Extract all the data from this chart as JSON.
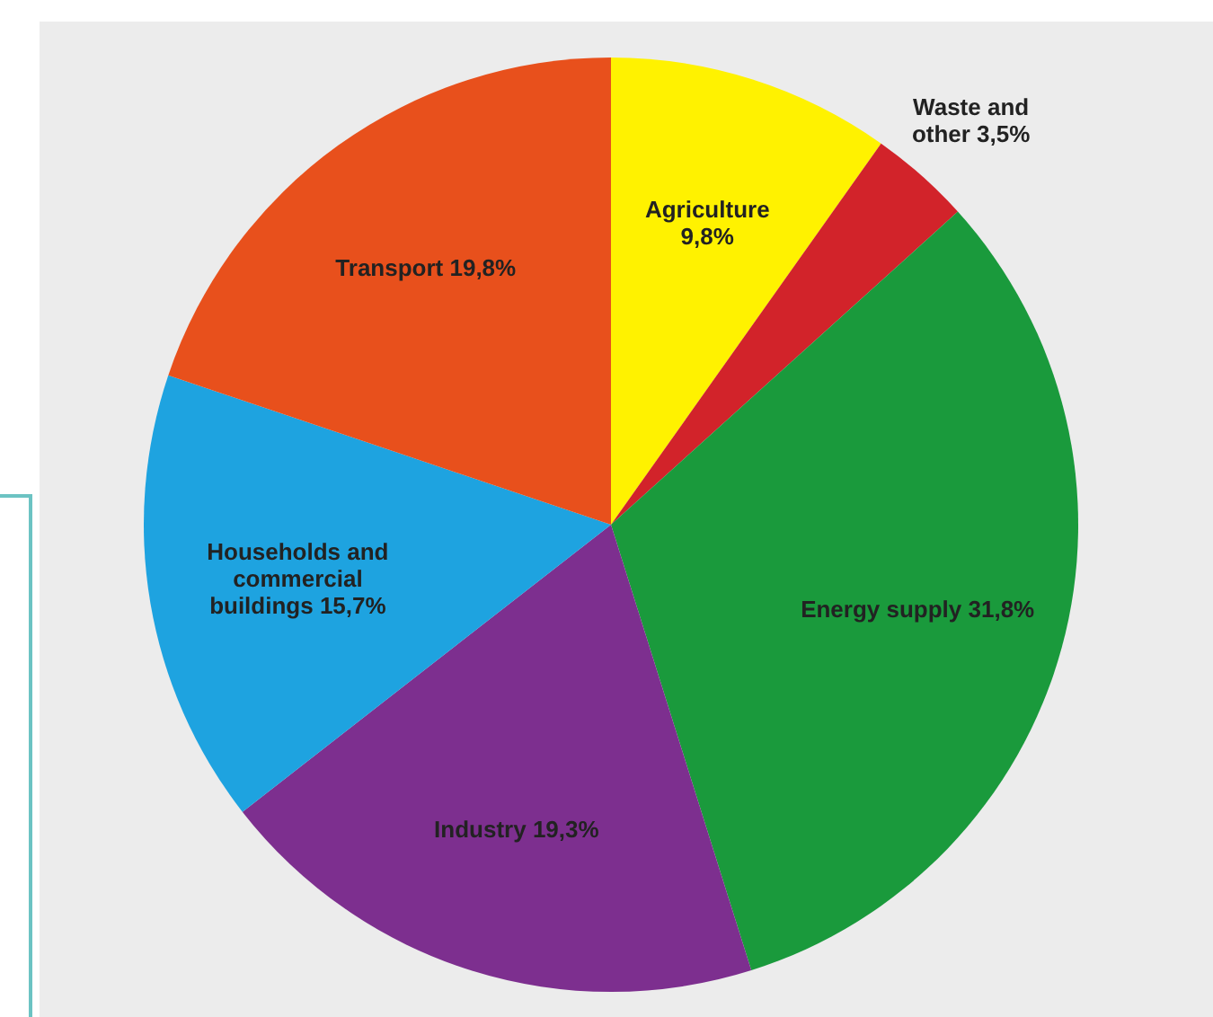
{
  "chart_data": {
    "type": "pie",
    "categories": [
      "Agriculture",
      "Waste and other",
      "Energy supply",
      "Industry",
      "Households and commercial buildings",
      "Transport"
    ],
    "values": [
      9.8,
      3.5,
      31.8,
      19.3,
      15.7,
      19.8
    ],
    "value_labels": [
      "9,8%",
      "3,5%",
      "31,8%",
      "19,3%",
      "15,7%",
      "19,8%"
    ],
    "colors": [
      "#fff200",
      "#d2232a",
      "#1a9a3c",
      "#7d2f8f",
      "#1ea3e0",
      "#e8501c"
    ]
  }
}
